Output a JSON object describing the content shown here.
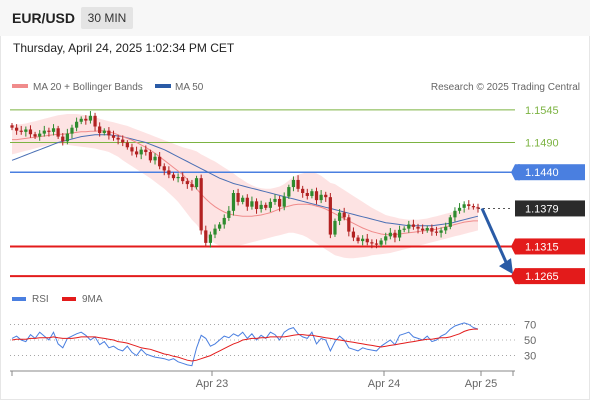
{
  "header": {
    "symbol": "EUR/USD",
    "timeframe": "30 MIN",
    "datetime": "Thursday, April 24, 2025 1:02:34 PM CET"
  },
  "legend": {
    "ma20": "MA 20 + Bollinger Bands",
    "ma50": "MA 50",
    "credit": "Research © 2025 Trading Central",
    "rsi": "RSI",
    "ma9": "9MA"
  },
  "colors": {
    "green_level": "#7cb342",
    "blue_level": "#4a7fe0",
    "red_level": "#e31b1b",
    "arrow": "#2a5ba6",
    "ma20": "#f08b8b",
    "ma50": "#4a6fb4",
    "bollinger_fill": "#fde0e0",
    "bull": "#2e8b2e",
    "bear": "#b22222"
  },
  "chart_data": [
    {
      "type": "candlestick",
      "ylim": [
        1.1245,
        1.1565
      ],
      "x_ticks": [
        "Apr 23",
        "Apr 24",
        "Apr 25"
      ],
      "levels": [
        {
          "value": 1.1545,
          "label": "1.1545",
          "kind": "green"
        },
        {
          "value": 1.149,
          "label": "1.1490",
          "kind": "green"
        },
        {
          "value": 1.144,
          "label": "1.1440",
          "kind": "blue"
        },
        {
          "value": 1.1379,
          "label": "1.1379",
          "kind": "last"
        },
        {
          "value": 1.1315,
          "label": "1.1315",
          "kind": "red"
        },
        {
          "value": 1.1265,
          "label": "1.1265",
          "kind": "red"
        }
      ],
      "close": [
        1.1515,
        1.151,
        1.1508,
        1.1512,
        1.1504,
        1.15,
        1.1505,
        1.151,
        1.1508,
        1.1514,
        1.15,
        1.1492,
        1.1505,
        1.1515,
        1.1525,
        1.153,
        1.1527,
        1.1535,
        1.1517,
        1.1506,
        1.151,
        1.1502,
        1.1498,
        1.1495,
        1.149,
        1.1482,
        1.1475,
        1.147,
        1.1478,
        1.1474,
        1.146,
        1.1466,
        1.145,
        1.1443,
        1.1436,
        1.143,
        1.1432,
        1.1425,
        1.142,
        1.1415,
        1.143,
        1.1342,
        1.1321,
        1.1335,
        1.1345,
        1.1352,
        1.1363,
        1.1375,
        1.1405,
        1.139,
        1.1397,
        1.1382,
        1.1391,
        1.1378,
        1.1385,
        1.138,
        1.139,
        1.1395,
        1.1382,
        1.1399,
        1.1415,
        1.1427,
        1.1412,
        1.1405,
        1.14,
        1.1408,
        1.1393,
        1.1402,
        1.1398,
        1.1335,
        1.1358,
        1.1372,
        1.1364,
        1.134,
        1.133,
        1.1324,
        1.1328,
        1.1322,
        1.132,
        1.1318,
        1.1325,
        1.1332,
        1.1338,
        1.133,
        1.1343,
        1.1345,
        1.1352,
        1.1348,
        1.1345,
        1.1342,
        1.1346,
        1.134,
        1.1338,
        1.1342,
        1.1348,
        1.1364,
        1.1375,
        1.138,
        1.1386,
        1.1383,
        1.1381,
        1.1379
      ],
      "ma20": [
        1.1495,
        1.1495,
        1.1496,
        1.1497,
        1.1498,
        1.1499,
        1.15,
        1.1501,
        1.1502,
        1.1503,
        1.1504,
        1.1504,
        1.1505,
        1.1506,
        1.1507,
        1.1508,
        1.1508,
        1.1509,
        1.1509,
        1.151,
        1.151,
        1.1508,
        1.1506,
        1.1503,
        1.15,
        1.1497,
        1.1494,
        1.149,
        1.1486,
        1.1482,
        1.1477,
        1.1472,
        1.1466,
        1.146,
        1.1454,
        1.1448,
        1.1442,
        1.1436,
        1.1428,
        1.142,
        1.1412,
        1.1403,
        1.1395,
        1.1388,
        1.1382,
        1.1377,
        1.1373,
        1.137,
        1.1368,
        1.1367,
        1.1366,
        1.1366,
        1.1366,
        1.1367,
        1.1368,
        1.137,
        1.1372,
        1.1375,
        1.1378,
        1.1381,
        1.1383,
        1.1385,
        1.1386,
        1.1386,
        1.1386,
        1.1385,
        1.1383,
        1.1381,
        1.1378,
        1.1374,
        1.137,
        1.1366,
        1.1362,
        1.1358,
        1.1354,
        1.135,
        1.1346,
        1.1343,
        1.134,
        1.1338,
        1.1336,
        1.1335,
        1.1335,
        1.1335,
        1.1336,
        1.1337,
        1.1338,
        1.1339,
        1.134,
        1.1341,
        1.1342,
        1.1343,
        1.1344,
        1.1346,
        1.1348,
        1.135,
        1.1352,
        1.1354,
        1.1356,
        1.1357,
        1.1358,
        1.1358
      ],
      "boll_upper": [
        1.152,
        1.152,
        1.1521,
        1.1522,
        1.1524,
        1.1526,
        1.1528,
        1.153,
        1.1532,
        1.1534,
        1.1536,
        1.1537,
        1.1538,
        1.1538,
        1.1538,
        1.1537,
        1.1536,
        1.1535,
        1.1533,
        1.153,
        1.1528,
        1.1526,
        1.1524,
        1.1522,
        1.152,
        1.1518,
        1.1515,
        1.1512,
        1.1509,
        1.1506,
        1.1503,
        1.15,
        1.1497,
        1.1494,
        1.1491,
        1.1488,
        1.1485,
        1.1482,
        1.148,
        1.1478,
        1.1475,
        1.147,
        1.1466,
        1.1462,
        1.1458,
        1.1453,
        1.1448,
        1.1443,
        1.1438,
        1.1432,
        1.1427,
        1.1422,
        1.1418,
        1.1415,
        1.1413,
        1.1412,
        1.1412,
        1.1414,
        1.1416,
        1.142,
        1.1426,
        1.1432,
        1.1436,
        1.1438,
        1.144,
        1.144,
        1.1438,
        1.1434,
        1.1428,
        1.1422,
        1.142,
        1.1415,
        1.141,
        1.1405,
        1.14,
        1.1395,
        1.139,
        1.1385,
        1.138,
        1.1376,
        1.1372,
        1.1368,
        1.1366,
        1.1364,
        1.1362,
        1.1361,
        1.136,
        1.136,
        1.136,
        1.1361,
        1.1362,
        1.1364,
        1.1366,
        1.1368,
        1.137,
        1.1372,
        1.1374,
        1.1376,
        1.1378,
        1.138,
        1.1382,
        1.1383
      ],
      "boll_lower": [
        1.147,
        1.1472,
        1.1474,
        1.1476,
        1.1478,
        1.148,
        1.1482,
        1.1484,
        1.1486,
        1.1488,
        1.1488,
        1.1487,
        1.1486,
        1.1485,
        1.1484,
        1.1483,
        1.1482,
        1.1481,
        1.148,
        1.1478,
        1.1476,
        1.1474,
        1.147,
        1.1466,
        1.146,
        1.1455,
        1.145,
        1.1445,
        1.144,
        1.1435,
        1.143,
        1.1424,
        1.1418,
        1.1412,
        1.1405,
        1.1398,
        1.139,
        1.138,
        1.137,
        1.136,
        1.1352,
        1.1342,
        1.1332,
        1.1326,
        1.132,
        1.1316,
        1.1314,
        1.1314,
        1.1315,
        1.1316,
        1.1318,
        1.132,
        1.1322,
        1.1324,
        1.1326,
        1.1328,
        1.133,
        1.1332,
        1.1334,
        1.1336,
        1.1338,
        1.1338,
        1.1336,
        1.1334,
        1.133,
        1.1325,
        1.132,
        1.1315,
        1.131,
        1.1305,
        1.13,
        1.1298,
        1.1296,
        1.1295,
        1.1295,
        1.1296,
        1.1297,
        1.1298,
        1.13,
        1.1301,
        1.1302,
        1.1303,
        1.1304,
        1.1306,
        1.1308,
        1.131,
        1.1312,
        1.1314,
        1.1316,
        1.1318,
        1.132,
        1.1322,
        1.1324,
        1.1326,
        1.1328,
        1.133,
        1.1332,
        1.1334,
        1.1336,
        1.1338,
        1.134,
        1.1342
      ],
      "ma50": [
        1.146,
        1.1463,
        1.1466,
        1.1469,
        1.1472,
        1.1475,
        1.1478,
        1.1481,
        1.1484,
        1.1487,
        1.149,
        1.1492,
        1.1494,
        1.1496,
        1.1498,
        1.15,
        1.1501,
        1.1502,
        1.1503,
        1.1503,
        1.1503,
        1.1503,
        1.1502,
        1.1501,
        1.15,
        1.1498,
        1.1496,
        1.1494,
        1.1492,
        1.149,
        1.1487,
        1.1484,
        1.1481,
        1.1478,
        1.1474,
        1.147,
        1.1466,
        1.1462,
        1.1458,
        1.1454,
        1.145,
        1.1446,
        1.1442,
        1.1438,
        1.1434,
        1.143,
        1.1427,
        1.1424,
        1.1421,
        1.1419,
        1.1417,
        1.1415,
        1.1413,
        1.1411,
        1.1409,
        1.1407,
        1.1405,
        1.1403,
        1.1401,
        1.1399,
        1.1397,
        1.1395,
        1.1393,
        1.1391,
        1.1389,
        1.1387,
        1.1385,
        1.1383,
        1.1381,
        1.1379,
        1.1377,
        1.1375,
        1.1373,
        1.1371,
        1.1369,
        1.1367,
        1.1365,
        1.1363,
        1.1361,
        1.1359,
        1.1357,
        1.1355,
        1.1354,
        1.1353,
        1.1352,
        1.1351,
        1.135,
        1.135,
        1.135,
        1.135,
        1.135,
        1.135,
        1.1351,
        1.1352,
        1.1353,
        1.1354,
        1.1356,
        1.1358,
        1.136,
        1.1362,
        1.1364,
        1.1366
      ],
      "forecast": {
        "from": 1.1379,
        "to": 1.1265
      }
    },
    {
      "type": "line",
      "title": "RSI",
      "y_ticks": [
        70,
        50,
        30
      ],
      "ylim": [
        14,
        86
      ],
      "series": [
        {
          "name": "RSI",
          "values": [
            52,
            55,
            50,
            48,
            57,
            52,
            60,
            55,
            50,
            60,
            45,
            40,
            52,
            55,
            58,
            60,
            56,
            50,
            54,
            44,
            48,
            40,
            42,
            38,
            36,
            42,
            34,
            30,
            38,
            32,
            30,
            28,
            27,
            26,
            24,
            26,
            22,
            20,
            18,
            17,
            40,
            56,
            52,
            42,
            45,
            50,
            55,
            53,
            58,
            55,
            60,
            52,
            58,
            50,
            56,
            52,
            60,
            57,
            50,
            60,
            64,
            66,
            58,
            54,
            52,
            60,
            45,
            52,
            50,
            36,
            48,
            55,
            50,
            40,
            38,
            36,
            40,
            38,
            37,
            36,
            42,
            46,
            50,
            44,
            56,
            58,
            60,
            54,
            52,
            50,
            55,
            48,
            50,
            55,
            58,
            64,
            68,
            70,
            72,
            70,
            66,
            64
          ]
        },
        {
          "name": "9MA",
          "values": [
            50,
            51,
            51,
            51,
            52,
            52,
            53,
            53,
            53,
            54,
            53,
            52,
            52,
            52,
            53,
            54,
            54,
            54,
            54,
            53,
            52,
            51,
            50,
            48,
            47,
            46,
            44,
            42,
            40,
            39,
            38,
            36,
            34,
            32,
            31,
            29,
            28,
            26,
            24,
            23,
            24,
            26,
            28,
            30,
            33,
            36,
            39,
            42,
            45,
            47,
            50,
            51,
            52,
            52,
            53,
            53,
            54,
            54,
            54,
            54,
            55,
            56,
            57,
            57,
            56,
            56,
            55,
            54,
            53,
            52,
            51,
            50,
            49,
            48,
            47,
            46,
            45,
            44,
            43,
            42,
            41,
            42,
            43,
            44,
            45,
            46,
            47,
            48,
            49,
            50,
            51,
            51,
            52,
            53,
            53,
            54,
            56,
            58,
            61,
            63,
            64,
            64
          ]
        }
      ]
    }
  ]
}
